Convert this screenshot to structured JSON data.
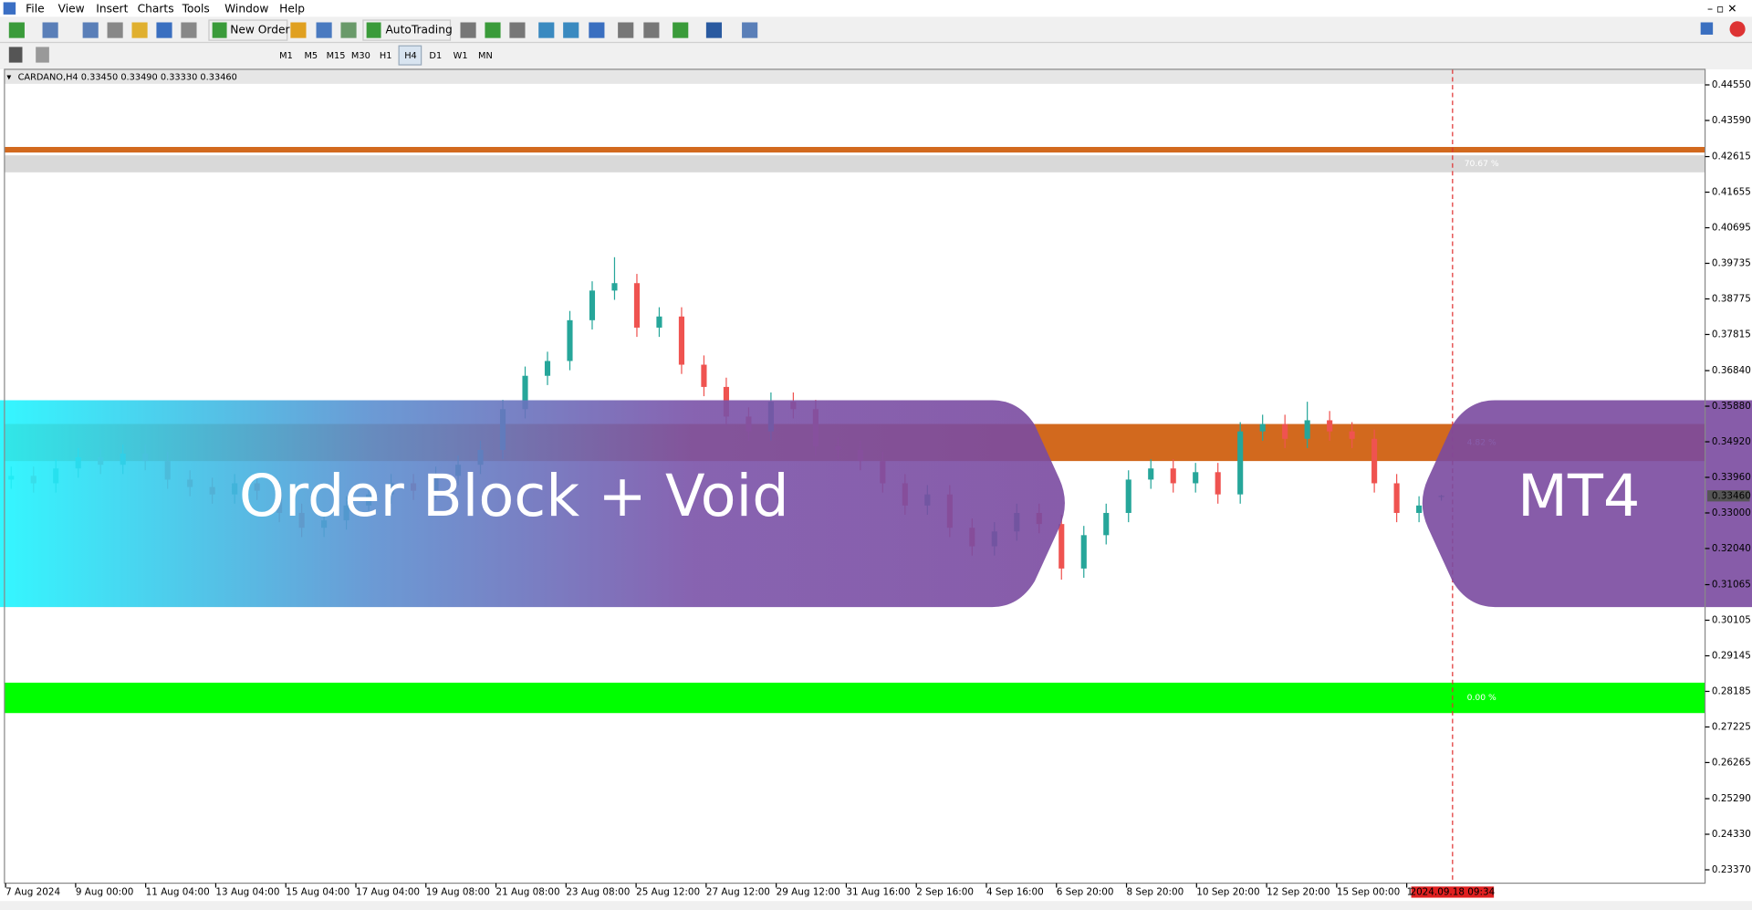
{
  "menu": [
    "File",
    "View",
    "Insert",
    "Charts",
    "Tools",
    "Window",
    "Help"
  ],
  "toolbar": {
    "new_order": "New Order",
    "autotrading": "AutoTrading",
    "timeframes": [
      "M1",
      "M5",
      "M15",
      "M30",
      "H1",
      "H4",
      "D1",
      "W1",
      "MN"
    ]
  },
  "banner": {
    "left": "Order Block + Void",
    "right": "MT4"
  },
  "chart_data": {
    "type": "candlestick",
    "title": "CARDANO,H4  0.33450 0.33490 0.33330 0.33460",
    "up_color": "#26a69a",
    "down_color": "#ef5350",
    "ylim": [
      0.2301,
      0.4497
    ],
    "yticks": [
      {
        "value": 0.4455,
        "label": "0.44550"
      },
      {
        "value": 0.4359,
        "label": "0.43590"
      },
      0.42615,
      0.41655,
      0.40695,
      0.39735,
      0.38775,
      0.37815,
      {
        "value": 0.3684,
        "label": "0.36840"
      },
      {
        "value": 0.3588,
        "label": "0.35880"
      },
      {
        "value": 0.3492,
        "label": "0.34920"
      },
      {
        "value": 0.3396,
        "label": "0.33960"
      },
      {
        "value": 0.33,
        "label": "0.33000"
      },
      {
        "value": 0.3204,
        "label": "0.32040"
      },
      0.31065,
      0.30105,
      0.29145,
      0.28185,
      0.27225,
      0.26265,
      {
        "value": 0.2529,
        "label": "0.25290"
      },
      {
        "value": 0.2433,
        "label": "0.24330"
      },
      {
        "value": 0.2337,
        "label": "0.23370"
      }
    ],
    "current_price": {
      "value": 0.3346,
      "label": "0.33460"
    },
    "x_labels": [
      "7 Aug 2024",
      "9 Aug 00:00",
      "11 Aug 04:00",
      "13 Aug 04:00",
      "15 Aug 04:00",
      "17 Aug 04:00",
      "19 Aug 08:00",
      "21 Aug 08:00",
      "23 Aug 08:00",
      "25 Aug 12:00",
      "27 Aug 12:00",
      "29 Aug 12:00",
      "31 Aug 16:00",
      "2 Sep 16:00",
      "4 Sep 16:00",
      "6 Sep 20:00",
      "8 Sep 20:00",
      "10 Sep 20:00",
      "12 Sep 20:00",
      "15 Sep 00:00",
      "1"
    ],
    "cursor_time": "2024.09.18 09:34",
    "level_line": {
      "value": 0.428,
      "color": "#d2691e"
    },
    "zones": [
      {
        "top": 0.4265,
        "bottom": 0.4219,
        "color": "#d9d9d9",
        "label": "70.67 %"
      },
      {
        "top": 0.354,
        "bottom": 0.344,
        "color": "#d2691e",
        "label": "4.82 %"
      },
      {
        "top": 0.2842,
        "bottom": 0.276,
        "color": "#00ff00",
        "label": "0.00 %"
      }
    ],
    "candles": [
      [
        0.339,
        0.3425,
        0.3365,
        0.34
      ],
      [
        0.34,
        0.3425,
        0.3355,
        0.338
      ],
      [
        0.338,
        0.3445,
        0.3355,
        0.342
      ],
      [
        0.342,
        0.3475,
        0.3395,
        0.345
      ],
      [
        0.345,
        0.3475,
        0.3405,
        0.343
      ],
      [
        0.343,
        0.3485,
        0.3405,
        0.346
      ],
      [
        0.346,
        0.3485,
        0.3415,
        0.344
      ],
      [
        0.344,
        0.3465,
        0.3365,
        0.339
      ],
      [
        0.339,
        0.3415,
        0.3345,
        0.337
      ],
      [
        0.337,
        0.3395,
        0.3325,
        0.335
      ],
      [
        0.335,
        0.3405,
        0.3325,
        0.338
      ],
      [
        0.338,
        0.3405,
        0.3335,
        0.336
      ],
      [
        0.336,
        0.3385,
        0.3275,
        0.33
      ],
      [
        0.33,
        0.3325,
        0.3235,
        0.326
      ],
      [
        0.326,
        0.3305,
        0.3235,
        0.328
      ],
      [
        0.328,
        0.3345,
        0.3255,
        0.332
      ],
      [
        0.332,
        0.3375,
        0.3295,
        0.335
      ],
      [
        0.335,
        0.3405,
        0.3325,
        0.338
      ],
      [
        0.338,
        0.3405,
        0.3335,
        0.336
      ],
      [
        0.336,
        0.3425,
        0.3335,
        0.34
      ],
      [
        0.34,
        0.3455,
        0.3375,
        0.343
      ],
      [
        0.343,
        0.3495,
        0.3405,
        0.347
      ],
      [
        0.347,
        0.3605,
        0.3445,
        0.358
      ],
      [
        0.358,
        0.3695,
        0.3555,
        0.367
      ],
      [
        0.367,
        0.3735,
        0.3645,
        0.371
      ],
      [
        0.371,
        0.3845,
        0.3685,
        0.382
      ],
      [
        0.382,
        0.3925,
        0.3795,
        0.39
      ],
      [
        0.39,
        0.399,
        0.3875,
        0.392
      ],
      [
        0.392,
        0.3945,
        0.3775,
        0.38
      ],
      [
        0.38,
        0.3855,
        0.3775,
        0.383
      ],
      [
        0.383,
        0.3855,
        0.3675,
        0.37
      ],
      [
        0.37,
        0.3725,
        0.3615,
        0.364
      ],
      [
        0.364,
        0.3665,
        0.3535,
        0.356
      ],
      [
        0.356,
        0.3585,
        0.3495,
        0.352
      ],
      [
        0.352,
        0.3625,
        0.3495,
        0.36
      ],
      [
        0.36,
        0.3625,
        0.3555,
        0.358
      ],
      [
        0.358,
        0.3605,
        0.3455,
        0.348
      ],
      [
        0.348,
        0.3505,
        0.3445,
        0.347
      ],
      [
        0.347,
        0.3495,
        0.3415,
        0.344
      ],
      [
        0.344,
        0.3465,
        0.3355,
        0.338
      ],
      [
        0.338,
        0.3405,
        0.3295,
        0.332
      ],
      [
        0.332,
        0.3375,
        0.3295,
        0.335
      ],
      [
        0.335,
        0.3375,
        0.3235,
        0.326
      ],
      [
        0.326,
        0.3285,
        0.3185,
        0.321
      ],
      [
        0.321,
        0.3275,
        0.3185,
        0.325
      ],
      [
        0.325,
        0.3325,
        0.3225,
        0.33
      ],
      [
        0.33,
        0.3325,
        0.3245,
        0.327
      ],
      [
        0.327,
        0.3295,
        0.312,
        0.315
      ],
      [
        0.315,
        0.3265,
        0.3125,
        0.324
      ],
      [
        0.324,
        0.3325,
        0.3215,
        0.33
      ],
      [
        0.33,
        0.3415,
        0.3275,
        0.339
      ],
      [
        0.339,
        0.3445,
        0.3365,
        0.342
      ],
      [
        0.342,
        0.3445,
        0.3355,
        0.338
      ],
      [
        0.338,
        0.3435,
        0.3355,
        0.341
      ],
      [
        0.341,
        0.3435,
        0.3325,
        0.335
      ],
      [
        0.335,
        0.3545,
        0.3325,
        0.352
      ],
      [
        0.352,
        0.3565,
        0.3495,
        0.354
      ],
      [
        0.354,
        0.3565,
        0.3475,
        0.35
      ],
      [
        0.35,
        0.36,
        0.3475,
        0.355
      ],
      [
        0.355,
        0.3575,
        0.3495,
        0.352
      ],
      [
        0.352,
        0.3545,
        0.3475,
        0.35
      ],
      [
        0.35,
        0.3525,
        0.3355,
        0.338
      ],
      [
        0.338,
        0.3405,
        0.3275,
        0.33
      ],
      [
        0.33,
        0.3345,
        0.3275,
        0.332
      ],
      [
        0.3345,
        0.3349,
        0.3333,
        0.3346
      ]
    ]
  }
}
